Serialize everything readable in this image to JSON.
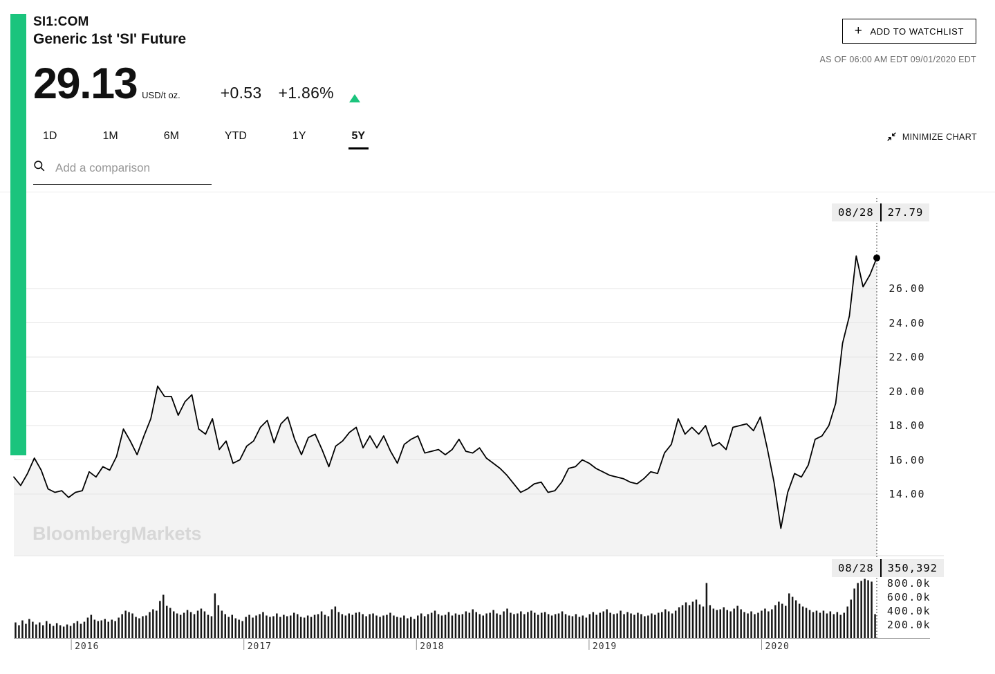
{
  "header": {
    "ticker": "SI1:COM",
    "name": "Generic 1st 'SI' Future",
    "watchlist_plus": "+",
    "watchlist_button": "ADD TO WATCHLIST",
    "as_of": "AS OF 06:00 AM EDT 09/01/2020 EDT"
  },
  "quote": {
    "price": "29.13",
    "unit": "USD/t oz.",
    "change": "+0.53",
    "pct_change": "+1.86%",
    "direction_icon": "up-triangle",
    "up_color": "#1bc47d"
  },
  "toolbar": {
    "ranges": [
      "1D",
      "1M",
      "6M",
      "YTD",
      "1Y",
      "5Y"
    ],
    "active_range": "5Y",
    "minimize_icon": "collapse-arrows-icon",
    "minimize_label": "MINIMIZE CHART"
  },
  "comparison": {
    "search_icon": "magnifier-icon",
    "placeholder": "Add a comparison"
  },
  "watermark": "BloombergMarkets",
  "chart_data": {
    "type": "line",
    "title": "SI1:COM 5Y price with volume",
    "x_range": [
      "2015-09",
      "2020-09-01"
    ],
    "x_year_ticks": [
      "2016",
      "2017",
      "2018",
      "2019",
      "2020"
    ],
    "crosshair": {
      "date": "08/28",
      "price": "27.79",
      "volume": "350,392"
    },
    "price": {
      "series_name": "SI1:COM",
      "unit": "USD/t oz.",
      "y_ticks": [
        26,
        24,
        22,
        20,
        18,
        16,
        14
      ],
      "ylim": [
        10.5,
        31.5
      ],
      "grid": true,
      "legend": "none",
      "interval": "approx biweekly",
      "values": [
        15.0,
        14.5,
        15.2,
        16.1,
        15.4,
        14.3,
        14.1,
        14.2,
        13.8,
        14.1,
        14.2,
        15.3,
        15.0,
        15.6,
        15.4,
        16.2,
        17.8,
        17.1,
        16.3,
        17.4,
        18.4,
        20.3,
        19.7,
        19.7,
        18.6,
        19.4,
        19.8,
        17.8,
        17.5,
        18.4,
        16.6,
        17.1,
        15.8,
        16.0,
        16.8,
        17.1,
        17.9,
        18.3,
        17.0,
        18.1,
        18.5,
        17.2,
        16.3,
        17.3,
        17.5,
        16.6,
        15.6,
        16.8,
        17.1,
        17.6,
        17.9,
        16.7,
        17.4,
        16.7,
        17.4,
        16.5,
        15.8,
        16.9,
        17.2,
        17.4,
        16.4,
        16.5,
        16.6,
        16.3,
        16.6,
        17.2,
        16.5,
        16.4,
        16.7,
        16.1,
        15.8,
        15.5,
        15.1,
        14.6,
        14.1,
        14.3,
        14.6,
        14.7,
        14.1,
        14.2,
        14.7,
        15.5,
        15.6,
        16.0,
        15.8,
        15.5,
        15.3,
        15.1,
        15.0,
        14.9,
        14.7,
        14.6,
        14.9,
        15.3,
        15.2,
        16.4,
        16.9,
        18.4,
        17.5,
        17.9,
        17.5,
        18.0,
        16.8,
        17.0,
        16.6,
        17.9,
        18.0,
        18.1,
        17.7,
        18.5,
        16.7,
        14.7,
        12.0,
        14.1,
        15.2,
        15.0,
        15.7,
        17.2,
        17.4,
        18.0,
        19.3,
        22.8,
        24.4,
        27.9,
        26.1,
        26.8,
        27.79
      ]
    },
    "volume": {
      "type": "bar",
      "unit_k": true,
      "y_ticks": [
        {
          "label": "800.0k",
          "value": 800
        },
        {
          "label": "600.0k",
          "value": 600
        },
        {
          "label": "400.0k",
          "value": 400
        },
        {
          "label": "200.0k",
          "value": 200
        }
      ],
      "interval": "approx weekly",
      "values": [
        230,
        190,
        260,
        210,
        280,
        240,
        200,
        230,
        190,
        250,
        210,
        180,
        220,
        190,
        170,
        200,
        180,
        220,
        250,
        210,
        240,
        300,
        340,
        270,
        250,
        260,
        280,
        240,
        270,
        250,
        300,
        350,
        400,
        380,
        360,
        310,
        290,
        320,
        330,
        380,
        420,
        400,
        540,
        630,
        470,
        440,
        390,
        360,
        340,
        370,
        410,
        380,
        350,
        400,
        430,
        390,
        340,
        320,
        650,
        480,
        400,
        350,
        310,
        340,
        290,
        270,
        250,
        310,
        340,
        300,
        330,
        350,
        380,
        330,
        310,
        320,
        360,
        310,
        340,
        320,
        330,
        370,
        350,
        310,
        300,
        330,
        310,
        340,
        350,
        390,
        340,
        320,
        420,
        460,
        380,
        350,
        330,
        360,
        340,
        370,
        380,
        350,
        320,
        350,
        360,
        330,
        310,
        330,
        340,
        370,
        330,
        310,
        300,
        330,
        290,
        310,
        280,
        330,
        360,
        320,
        350,
        370,
        400,
        350,
        330,
        340,
        380,
        330,
        360,
        340,
        350,
        390,
        370,
        420,
        380,
        350,
        330,
        360,
        370,
        410,
        360,
        340,
        390,
        430,
        370,
        350,
        360,
        390,
        350,
        380,
        400,
        370,
        340,
        370,
        380,
        350,
        330,
        350,
        360,
        390,
        350,
        330,
        320,
        350,
        310,
        330,
        300,
        350,
        380,
        340,
        370,
        390,
        420,
        370,
        350,
        360,
        400,
        350,
        380,
        360,
        340,
        370,
        350,
        320,
        330,
        360,
        340,
        370,
        380,
        420,
        390,
        360,
        400,
        450,
        480,
        520,
        480,
        530,
        560,
        490,
        460,
        800,
        480,
        430,
        410,
        420,
        450,
        410,
        390,
        430,
        470,
        420,
        380,
        360,
        390,
        350,
        370,
        400,
        430,
        390,
        420,
        480,
        530,
        500,
        470,
        650,
        600,
        550,
        500,
        460,
        440,
        410,
        380,
        400,
        370,
        400,
        360,
        390,
        350,
        380,
        340,
        370,
        460,
        560,
        720,
        800,
        830,
        860,
        840,
        820,
        350
      ]
    }
  }
}
